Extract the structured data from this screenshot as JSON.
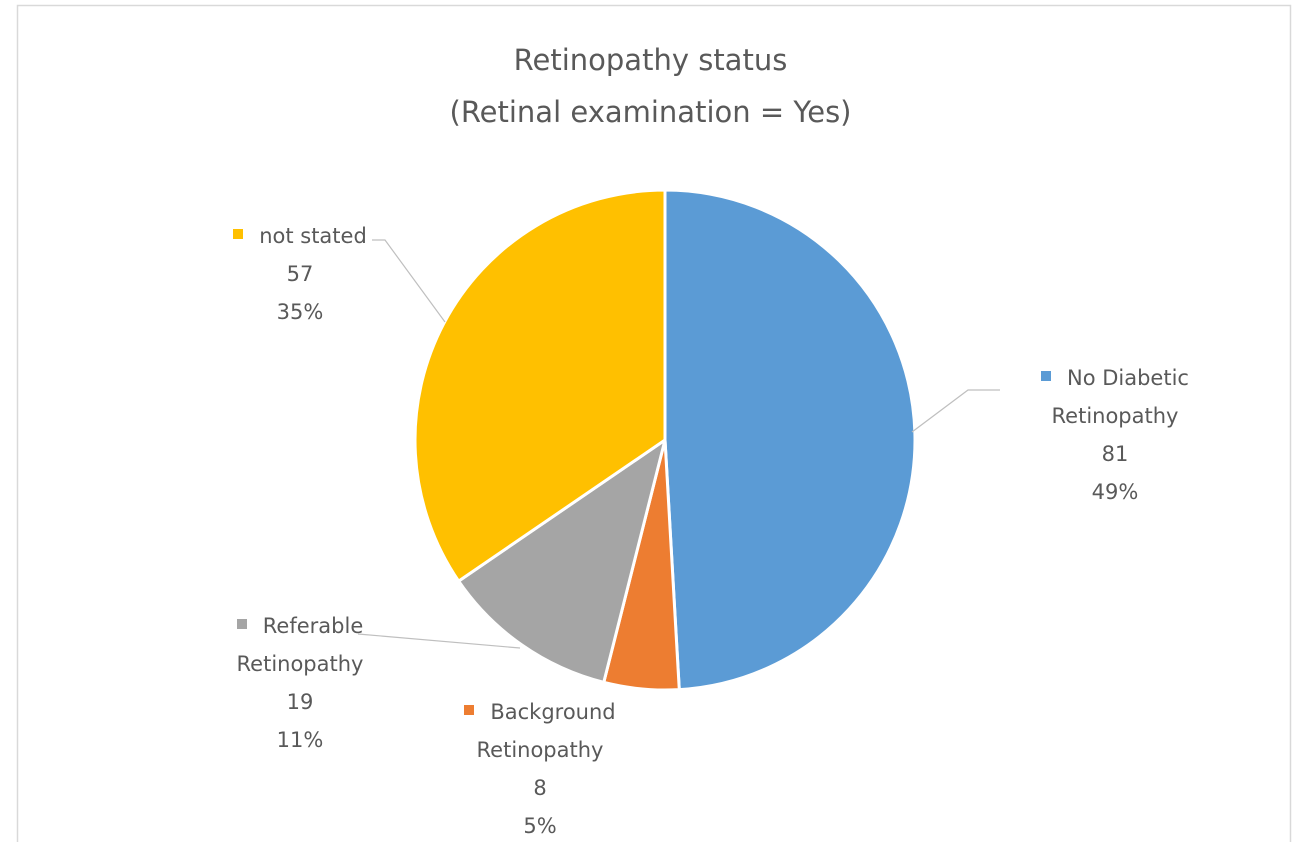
{
  "chart_data": {
    "type": "pie",
    "title": "Retinopathy status",
    "subtitle": "(Retinal examination = Yes)",
    "categories": [
      "No Diabetic Retinopathy",
      "Background Retinopathy",
      "Referable Retinopathy",
      "not stated"
    ],
    "values": [
      81,
      8,
      19,
      57
    ],
    "percent_labels": [
      "49%",
      "5%",
      "11%",
      "35%"
    ],
    "colors": [
      "#5b9bd5",
      "#ed7d31",
      "#a5a5a5",
      "#ffc000"
    ]
  }
}
